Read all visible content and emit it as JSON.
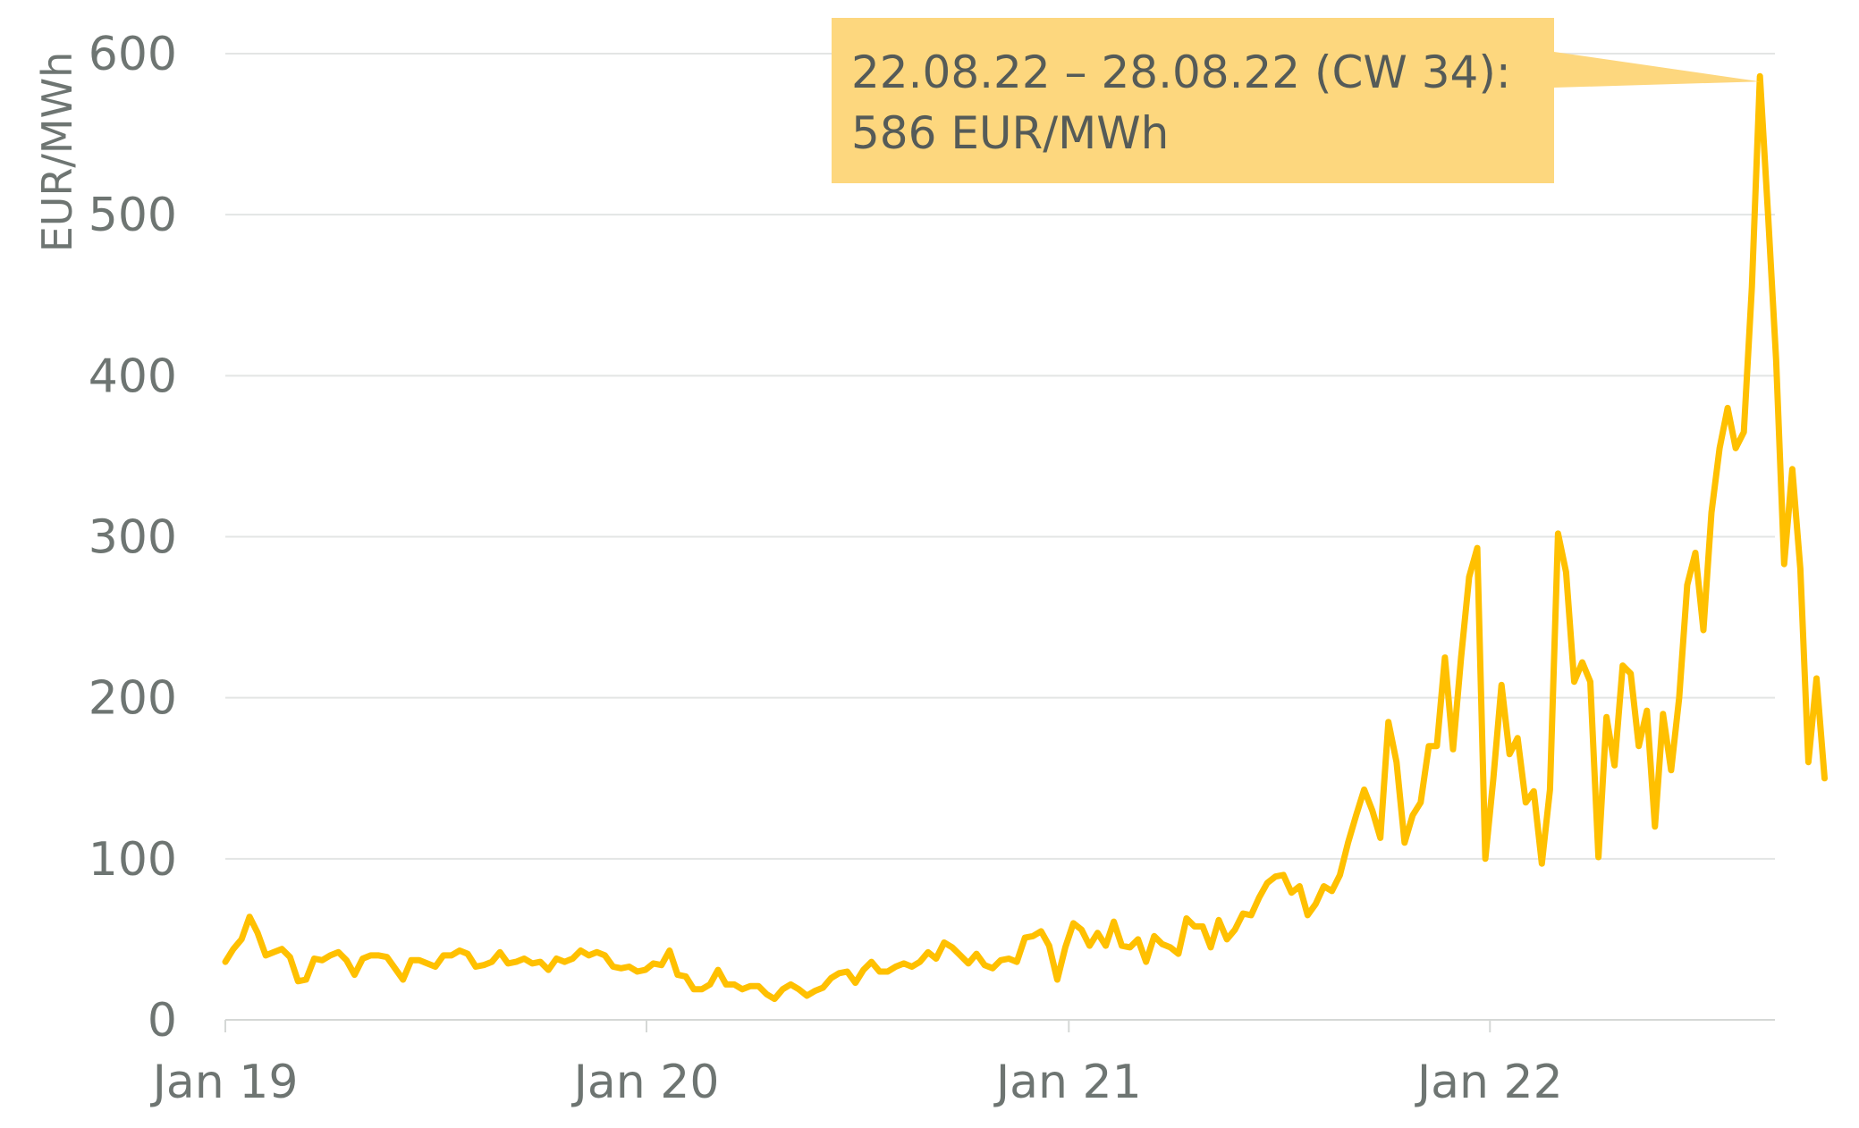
{
  "colors": {
    "line": "#FFC000",
    "grid": "#e3e5e4",
    "axis": "#d5d8d6",
    "text": "#6e7572",
    "callout_fill": "#FDD77E",
    "callout_text": "#555b58"
  },
  "chart_data": {
    "type": "line",
    "title": "",
    "ylabel": "EUR/MWh",
    "xlabel": "",
    "ylim": [
      0,
      600
    ],
    "yticks": [
      0,
      100,
      200,
      300,
      400,
      500,
      600
    ],
    "xticks": [
      {
        "label": "Jan 19",
        "date": "2019-01-01"
      },
      {
        "label": "Jan 20",
        "date": "2020-01-01"
      },
      {
        "label": "Jan 21",
        "date": "2021-01-01"
      },
      {
        "label": "Jan 22",
        "date": "2022-01-01"
      }
    ],
    "grid": true,
    "legend": "none",
    "x_start_date": "2019-01-01",
    "x_end_date": "2022-09-05",
    "series": [
      {
        "name": "",
        "x_frequency": "weekly",
        "values": [
          36,
          44,
          50,
          64,
          54,
          40,
          42,
          44,
          39,
          24,
          25,
          38,
          37,
          40,
          42,
          37,
          28,
          38,
          40,
          40,
          39,
          32,
          25,
          37,
          37,
          35,
          33,
          40,
          40,
          43,
          41,
          33,
          34,
          36,
          42,
          35,
          36,
          38,
          35,
          36,
          31,
          38,
          36,
          38,
          43,
          40,
          42,
          40,
          33,
          32,
          33,
          30,
          31,
          35,
          34,
          43,
          28,
          27,
          19,
          19,
          22,
          31,
          22,
          22,
          19,
          21,
          21,
          16,
          13,
          19,
          22,
          19,
          15,
          18,
          20,
          26,
          29,
          30,
          23,
          31,
          36,
          30,
          30,
          33,
          35,
          33,
          36,
          42,
          38,
          48,
          45,
          40,
          35,
          41,
          34,
          32,
          37,
          38,
          36,
          51,
          52,
          55,
          46,
          25,
          45,
          60,
          56,
          46,
          54,
          46,
          61,
          46,
          45,
          50,
          36,
          52,
          47,
          45,
          41,
          63,
          58,
          58,
          45,
          62,
          50,
          56,
          66,
          65,
          76,
          85,
          89,
          90,
          79,
          83,
          65,
          72,
          83,
          80,
          90,
          110,
          127,
          143,
          130,
          113,
          185,
          160,
          110,
          127,
          135,
          170,
          170,
          225,
          168,
          225,
          275,
          293,
          100,
          150,
          208,
          165,
          175,
          135,
          142,
          97,
          143,
          302,
          278,
          210,
          222,
          210,
          101,
          188,
          158,
          220,
          215,
          170,
          192,
          120,
          190,
          155,
          200,
          270,
          290,
          242,
          315,
          355,
          380,
          355,
          365,
          455,
          586,
          500,
          410,
          283,
          342,
          280,
          160,
          212,
          150
        ]
      }
    ],
    "annotations": [
      {
        "line1": "22.08.22 – 28.08.22 (CW 34):",
        "line2": "586 EUR/MWh",
        "point_index": 190,
        "value": 586
      }
    ]
  }
}
